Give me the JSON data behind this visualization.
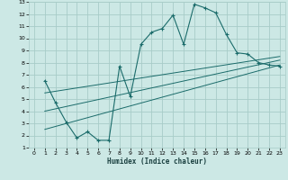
{
  "xlabel": "Humidex (Indice chaleur)",
  "bg_color": "#cce8e5",
  "grid_color": "#a8ccc8",
  "line_color": "#1a6b6a",
  "xlim": [
    -0.5,
    23.5
  ],
  "ylim": [
    1,
    13
  ],
  "xticks": [
    0,
    1,
    2,
    3,
    4,
    5,
    6,
    7,
    8,
    9,
    10,
    11,
    12,
    13,
    14,
    15,
    16,
    17,
    18,
    19,
    20,
    21,
    22,
    23
  ],
  "yticks": [
    1,
    2,
    3,
    4,
    5,
    6,
    7,
    8,
    9,
    10,
    11,
    12,
    13
  ],
  "curve_x": [
    1,
    2,
    3,
    4,
    5,
    6,
    7,
    8,
    9,
    10,
    11,
    12,
    13,
    14,
    15,
    16,
    17,
    18,
    19,
    20,
    21,
    22,
    23
  ],
  "curve_y": [
    6.5,
    4.7,
    3.1,
    1.8,
    2.3,
    1.6,
    1.6,
    7.7,
    5.2,
    9.5,
    10.5,
    10.8,
    11.9,
    9.5,
    12.8,
    12.5,
    12.1,
    10.3,
    8.8,
    8.7,
    8.0,
    7.8,
    7.7
  ],
  "line1_x": [
    1,
    23
  ],
  "line1_y": [
    5.5,
    8.5
  ],
  "line2_x": [
    1,
    23
  ],
  "line2_y": [
    4.0,
    8.2
  ],
  "line3_x": [
    1,
    23
  ],
  "line3_y": [
    2.5,
    7.8
  ]
}
